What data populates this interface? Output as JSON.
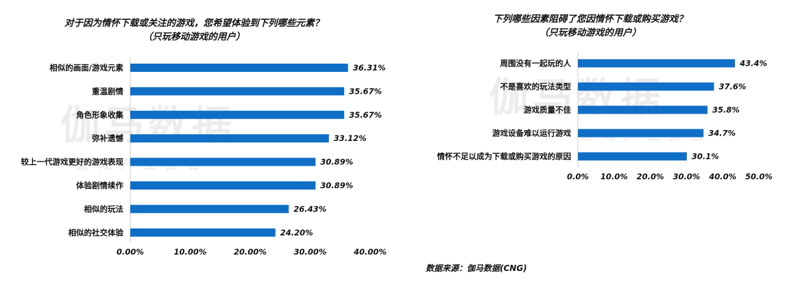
{
  "chart_data": [
    {
      "type": "bar",
      "orientation": "horizontal",
      "title": "对于因为情怀下载或关注的游戏，您希望体验到下列哪些元素？",
      "subtitle": "（只玩移动游戏的用户）",
      "categories": [
        "相似的画面/游戏元素",
        "重温剧情",
        "角色形象收集",
        "弥补遗憾",
        "较上一代游戏更好的游戏表现",
        "体验剧情续作",
        "相似的玩法",
        "相似的社交体验"
      ],
      "values": [
        36.31,
        35.67,
        35.67,
        33.12,
        30.89,
        30.89,
        26.43,
        24.2
      ],
      "value_labels": [
        "36.31%",
        "35.67%",
        "35.67%",
        "33.12%",
        "30.89%",
        "30.89%",
        "26.43%",
        "24.20%"
      ],
      "xlim": [
        0,
        40
      ],
      "xticks": [
        "0.00%",
        "10.00%",
        "20.00%",
        "30.00%",
        "40.00%"
      ],
      "bar_color": "#0f6fc6",
      "grid": false,
      "xlabel": "",
      "ylabel": ""
    },
    {
      "type": "bar",
      "orientation": "horizontal",
      "title": "下列哪些因素阻碍了您因情怀下载或购买游戏？",
      "subtitle": "（只玩移动游戏的用户）",
      "categories": [
        "周围没有一起玩的人",
        "不是喜欢的玩法类型",
        "游戏质量不佳",
        "游戏设备难以运行游戏",
        "情怀不足以成为下载或购买游戏的原因"
      ],
      "values": [
        43.4,
        37.6,
        35.8,
        34.7,
        30.1
      ],
      "value_labels": [
        "43.4%",
        "37.6%",
        "35.8%",
        "34.7%",
        "30.1%"
      ],
      "xlim": [
        0,
        50
      ],
      "xticks": [
        "0.0%",
        "10.0%",
        "20.0%",
        "30.0%",
        "40.0%",
        "50.0%"
      ],
      "bar_color": "#0f6fc6",
      "grid": false,
      "xlabel": "",
      "ylabel": ""
    }
  ],
  "watermark": {
    "main": "伽马数据",
    "sub": "游 戏 产 业 报 告"
  },
  "source": "数据来源：伽马数据(CNG)"
}
